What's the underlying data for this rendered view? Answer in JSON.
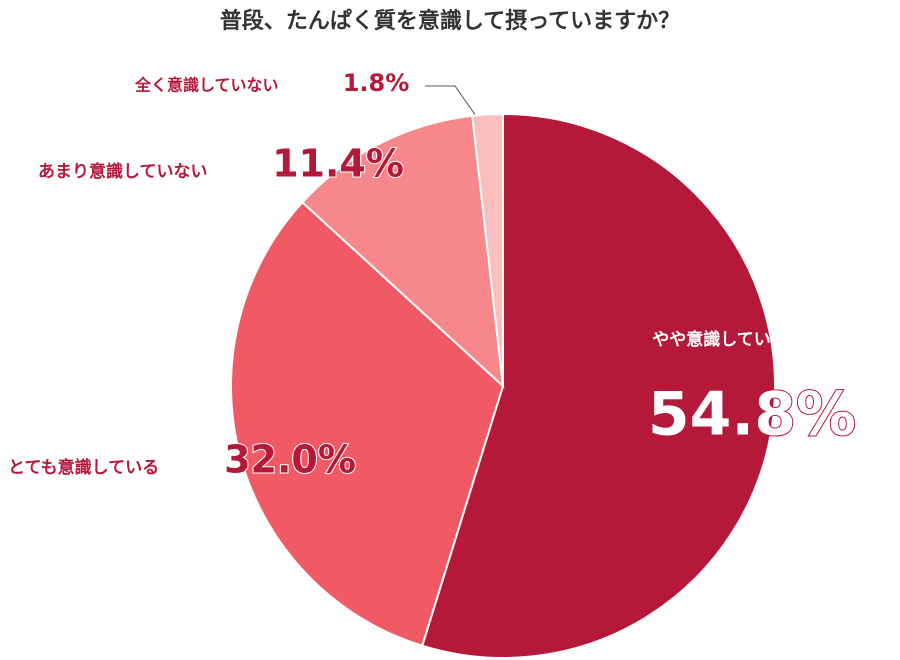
{
  "chart_data": {
    "type": "pie",
    "title": "普段、たんぱく質を意識して摂っていますか？",
    "categories": [
      "やや意識している",
      "とても意識している",
      "あまり意識していない",
      "全く意識していない"
    ],
    "values": [
      54.8,
      32.0,
      11.4,
      1.8
    ],
    "value_labels": [
      "54.8%",
      "32.0%",
      "11.4%",
      "1.8%"
    ],
    "colors": [
      "#b5193a",
      "#f05a64",
      "#f6888b",
      "#fbbdbe"
    ]
  }
}
